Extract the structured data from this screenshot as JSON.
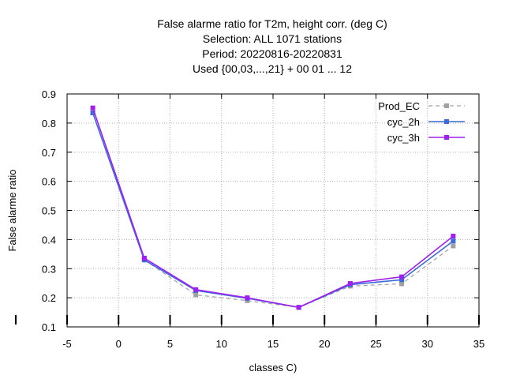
{
  "chart_data": {
    "type": "line",
    "title_lines": [
      "False alarme ratio  for T2m, height corr. (deg C)",
      "Selection: ALL    1071 stations",
      "Period: 20220816-20220831",
      "Used {00,03,...,21} + 00 01 ... 12"
    ],
    "xlabel": "classes C)",
    "ylabel": "False alarme ratio",
    "xlim": [
      -5,
      35
    ],
    "ylim": [
      0.1,
      0.9
    ],
    "xticks": [
      -5,
      0,
      5,
      10,
      15,
      20,
      25,
      30,
      35
    ],
    "yticks": [
      0.1,
      0.2,
      0.3,
      0.4,
      0.5,
      0.6,
      0.7,
      0.8,
      0.9
    ],
    "grid": true,
    "legend_position": "top-right",
    "x": [
      -2.5,
      2.5,
      7.5,
      12.5,
      17.5,
      22.5,
      27.5,
      32.5
    ],
    "series": [
      {
        "name": "Prod_EC",
        "color": "#a0a0a0",
        "dashed": true,
        "values": [
          0.835,
          0.33,
          0.21,
          0.19,
          0.167,
          0.24,
          0.248,
          0.378
        ]
      },
      {
        "name": "cyc_2h",
        "color": "#3a6bd8",
        "dashed": false,
        "values": [
          0.835,
          0.33,
          0.225,
          0.198,
          0.167,
          0.245,
          0.262,
          0.395
        ]
      },
      {
        "name": "cyc_3h",
        "color": "#a020f0",
        "dashed": false,
        "values": [
          0.852,
          0.336,
          0.228,
          0.2,
          0.167,
          0.249,
          0.272,
          0.412
        ]
      }
    ]
  }
}
